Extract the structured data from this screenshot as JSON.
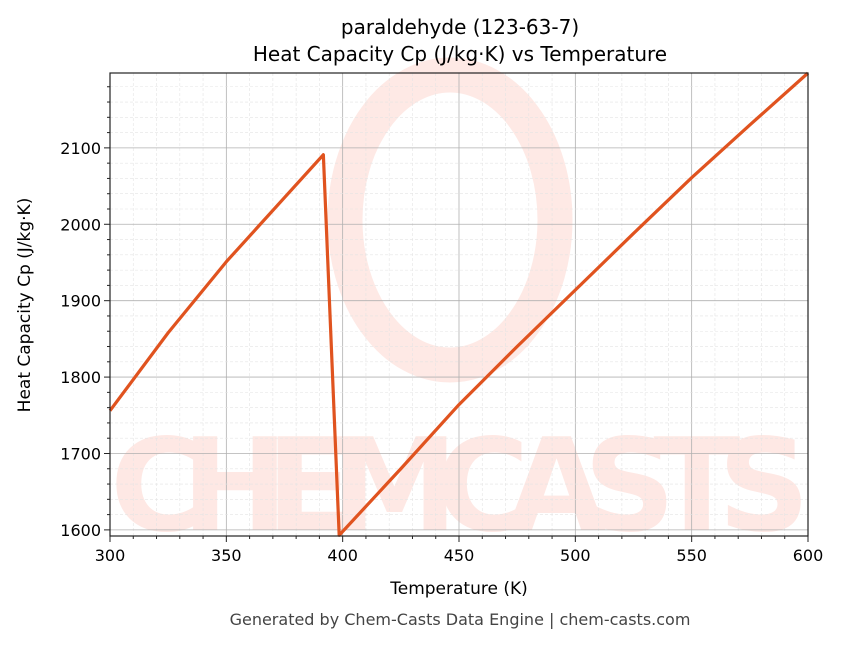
{
  "chart_data": {
    "type": "line",
    "title_line1": "paraldehyde (123-63-7)",
    "title_line2": "Heat Capacity Cp (J/kg·K) vs Temperature",
    "xlabel": "Temperature (K)",
    "ylabel": "Heat Capacity Cp (J/kg·K)",
    "xlim": [
      300,
      600
    ],
    "ylim": [
      1592,
      2198
    ],
    "xticks": [
      300,
      350,
      400,
      450,
      500,
      550,
      600
    ],
    "yticks": [
      1600,
      1700,
      1800,
      1900,
      2000,
      2100
    ],
    "grid": true,
    "line_color": "#e0531f",
    "series": [
      {
        "x": [
          300,
          325,
          350,
          375,
          391.7,
          398.5,
          425,
          450,
          475,
          500,
          525,
          550,
          575,
          600
        ],
        "y": [
          1756,
          1858,
          1951,
          2035,
          2091,
          1593,
          1680,
          1764,
          1840,
          1914,
          1988,
          2061,
          2130,
          2198
        ]
      }
    ]
  },
  "watermark": "CHEMCASTS",
  "footer": "Generated by Chem-Casts Data Engine | chem-casts.com"
}
